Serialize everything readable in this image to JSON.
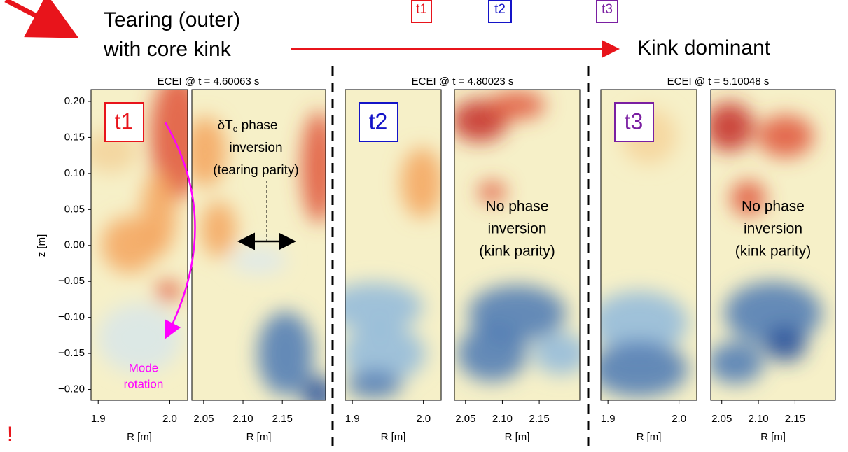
{
  "header": {
    "left_label": [
      "Tearing (outer)",
      "with core kink"
    ],
    "right_label": "Kink dominant",
    "time_tags": [
      "t1",
      "t2",
      "t3"
    ],
    "alert": "!"
  },
  "ylabel": "z [m]",
  "xlabel": "R [m]",
  "ylim": [
    -0.215,
    0.2165
  ],
  "yticks": [
    {
      "value": 0.2,
      "label": "0.20"
    },
    {
      "value": 0.15,
      "label": "0.15"
    },
    {
      "value": 0.1,
      "label": "0.10"
    },
    {
      "value": 0.05,
      "label": "0.05"
    },
    {
      "value": 0,
      "label": "0.00"
    },
    {
      "value": -0.05,
      "label": "−0.05"
    },
    {
      "value": -0.1,
      "label": "−0.10"
    },
    {
      "value": -0.15,
      "label": "−0.15"
    },
    {
      "value": -0.2,
      "label": "−0.20"
    }
  ],
  "xlim_inner": [
    1.89,
    2.025
  ],
  "xticks_inner": [
    {
      "value": 1.9,
      "label": "1.9"
    },
    {
      "value": 2.0,
      "label": "2.0"
    }
  ],
  "xlim_outer": [
    2.035,
    2.205
  ],
  "xticks_outer": [
    {
      "value": 2.05,
      "label": "2.05"
    },
    {
      "value": 2.1,
      "label": "2.10"
    },
    {
      "value": 2.15,
      "label": "2.15"
    }
  ],
  "panels": [
    {
      "title": "ECEI @ t = 4.60063 s",
      "tag": "t1",
      "note": [
        "Mode",
        "rotation"
      ],
      "inversion": [
        "δT",
        "e",
        "phase",
        "inversion",
        "(tearing parity)"
      ]
    },
    {
      "title": "ECEI @ t = 4.80023 s",
      "tag": "t2",
      "inversion": [
        "No phase",
        "inversion",
        "(kink parity)"
      ]
    },
    {
      "title": "ECEI @ t = 5.10048 s",
      "tag": "t3",
      "inversion": [
        "No phase",
        "inversion",
        "(kink parity)"
      ]
    }
  ]
}
